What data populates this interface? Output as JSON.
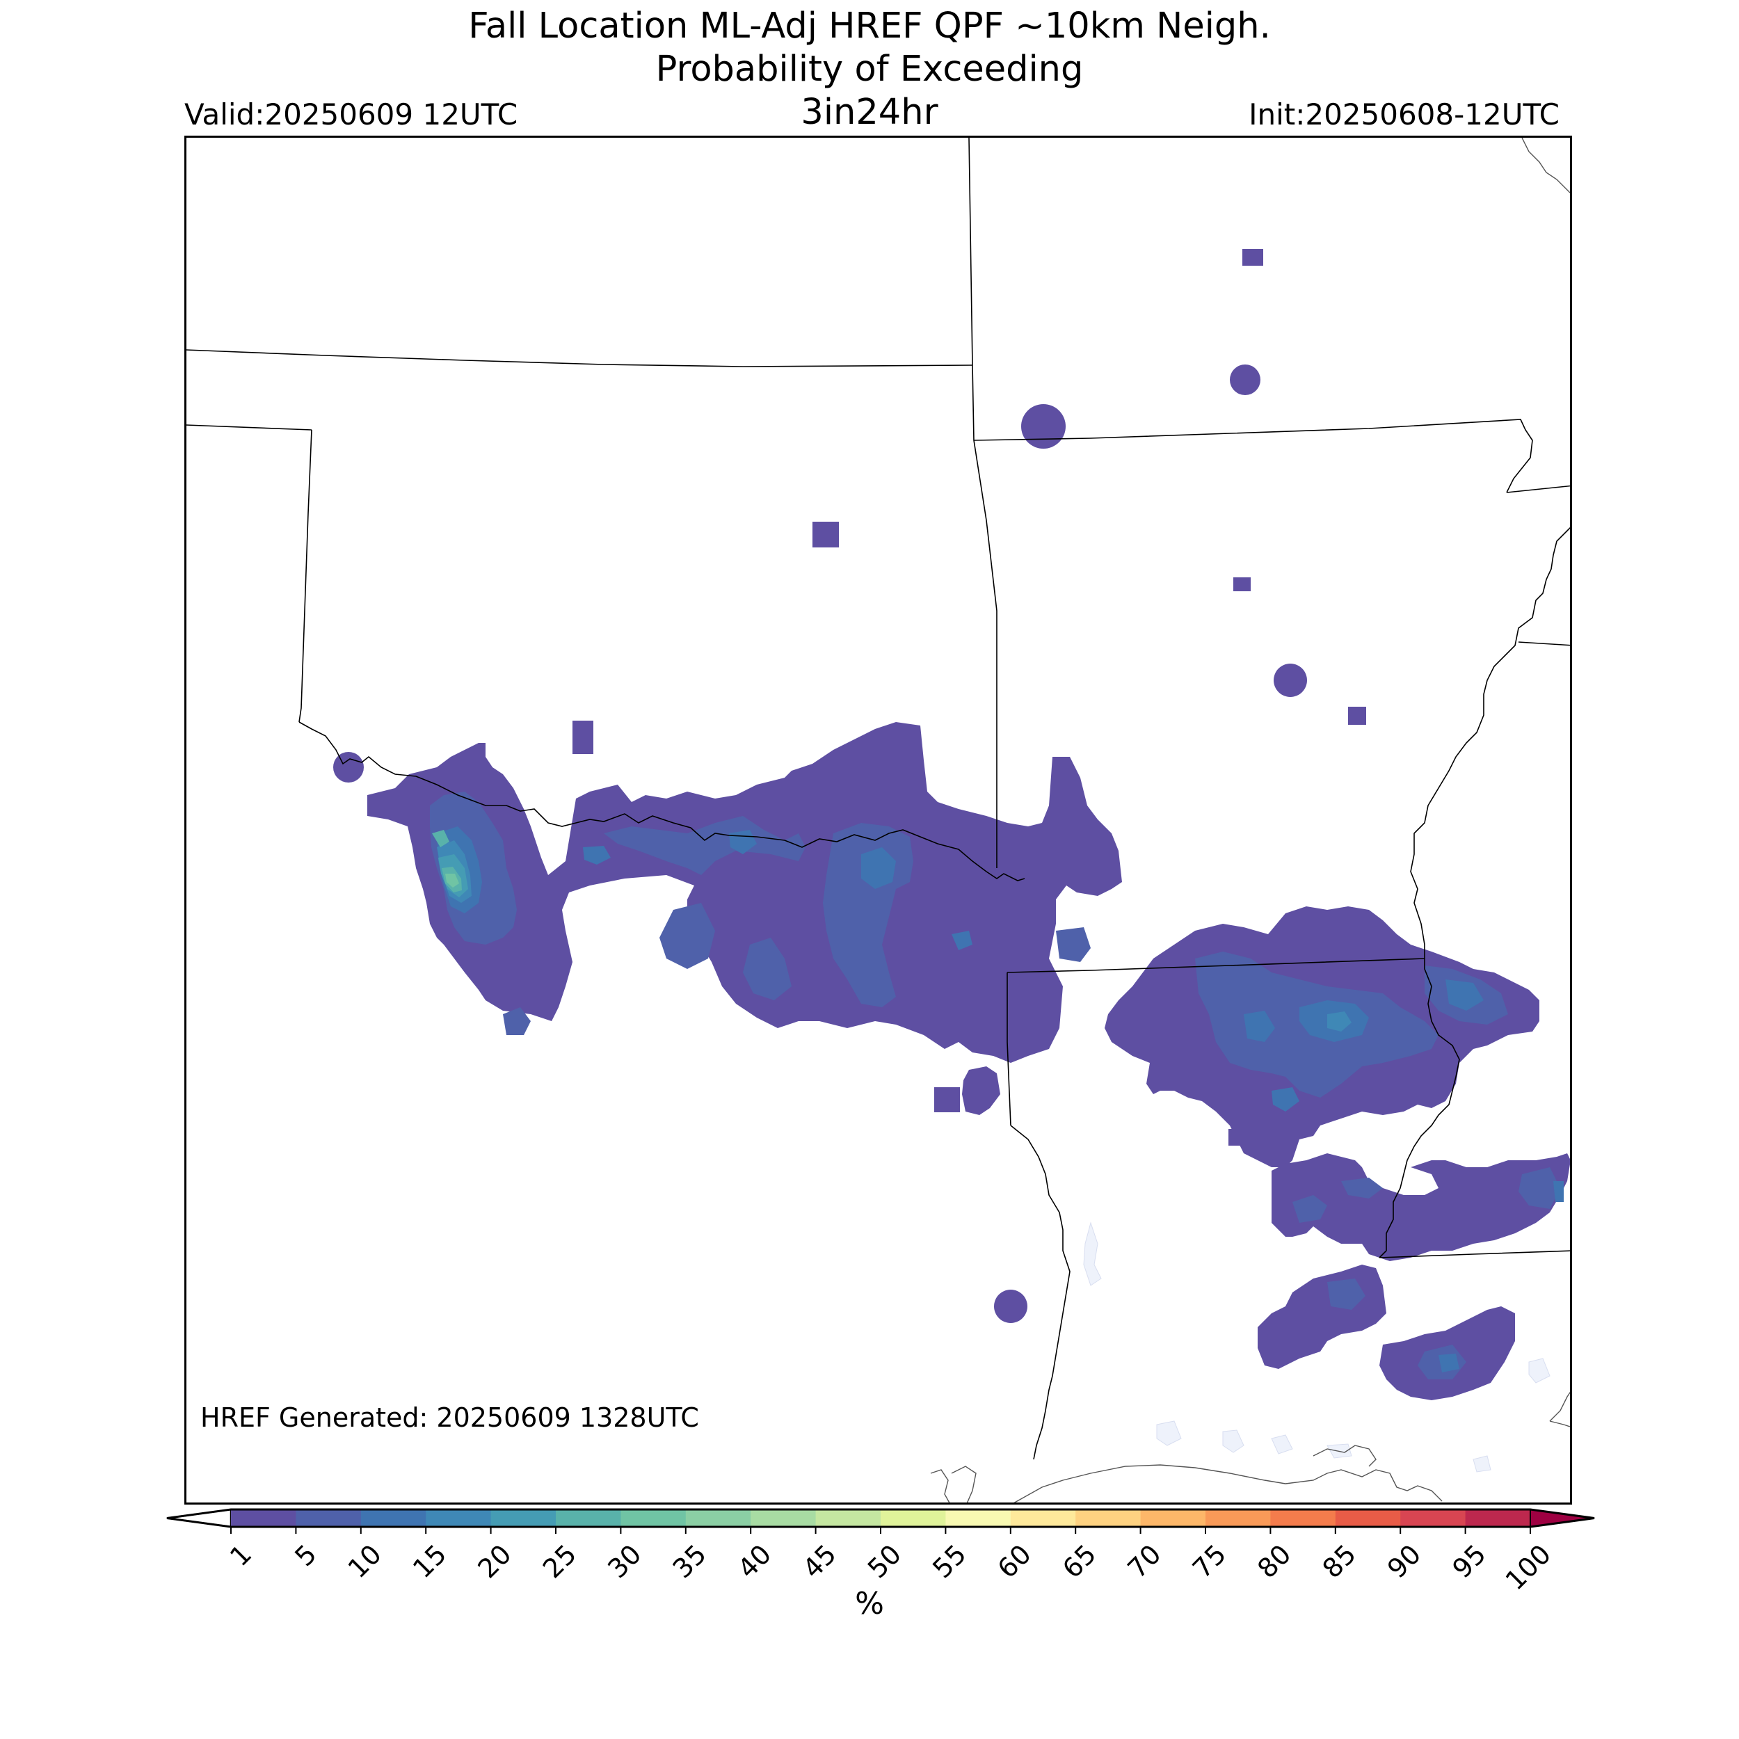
{
  "header": {
    "title_line1": "Fall Location ML-Adj HREF QPF ~10km Neigh.",
    "title_line2": "Probability of Exceeding",
    "threshold": "3in24hr",
    "valid": "Valid:20250609 12UTC",
    "init": "Init:20250608-12UTC"
  },
  "map": {
    "generated_note": "HREF Generated: 20250609 1328UTC",
    "boundary_color": "#000000",
    "water_color": "#eef2fb"
  },
  "colorbar": {
    "unit": "%",
    "ticks": [
      "1",
      "5",
      "10",
      "15",
      "20",
      "25",
      "30",
      "35",
      "40",
      "45",
      "50",
      "55",
      "60",
      "65",
      "70",
      "75",
      "80",
      "85",
      "90",
      "95",
      "100"
    ],
    "colors": [
      "#5e4fa2",
      "#4f61aa",
      "#3f74b1",
      "#3f88b6",
      "#459cb4",
      "#59b2aa",
      "#70c4a4",
      "#8bcfa4",
      "#a8dca3",
      "#c5e7a1",
      "#e0f39a",
      "#f8f9b2",
      "#fee99b",
      "#fed281",
      "#fdb769",
      "#f99a58",
      "#f47c4c",
      "#e85c47",
      "#d84552",
      "#bd284e",
      "#9e0142"
    ],
    "under_color": "#ffffff",
    "over_color": "#9e0142"
  }
}
